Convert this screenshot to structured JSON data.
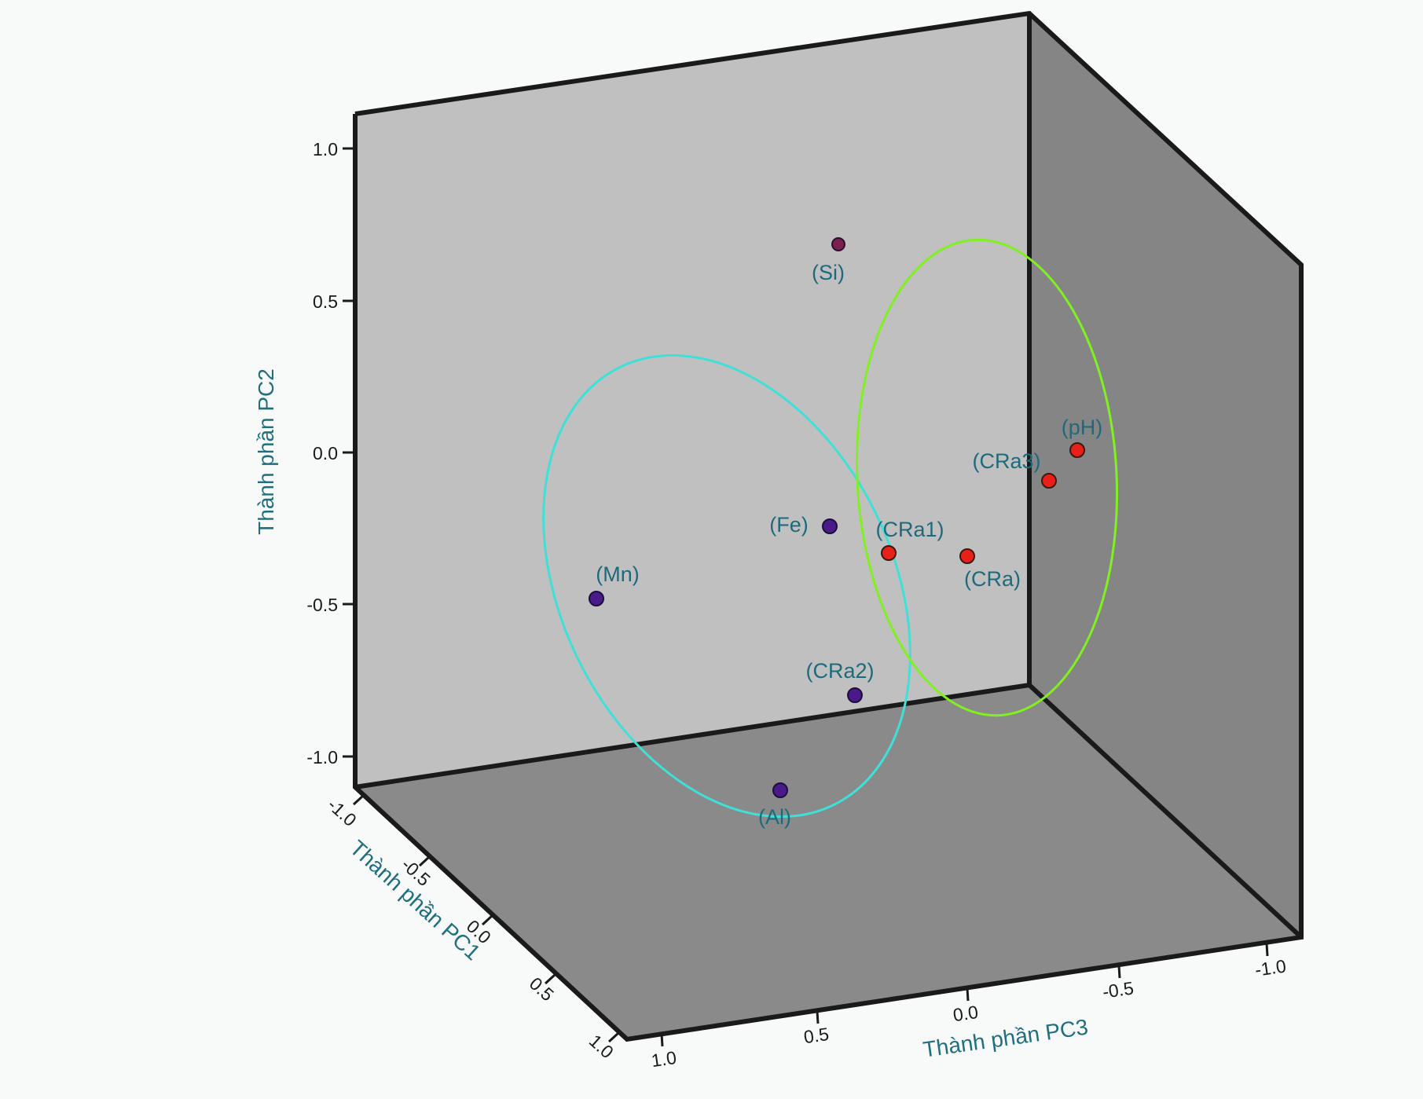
{
  "chart_data": {
    "type": "scatter",
    "title": "",
    "axes": {
      "x": {
        "label": "Thành phần PC3",
        "ticks": [
          "1.0",
          "0.5",
          "0.0",
          "-0.5",
          "-1.0"
        ],
        "range": [
          1.0,
          -1.0
        ]
      },
      "y": {
        "label": "Thành phần PC2",
        "ticks": [
          "1.0",
          "0.5",
          "0.0",
          "-0.5",
          "-1.0"
        ],
        "range": [
          -1.1,
          1.1
        ]
      },
      "z": {
        "label": "Thành phần PC1",
        "ticks": [
          "-1.0",
          "-0.5",
          "0.0",
          "0.5",
          "1.0"
        ],
        "range": [
          -1.0,
          1.0
        ]
      }
    },
    "points": [
      {
        "label": "(Si)",
        "pc2": 0.68,
        "color": "#7a1f4e"
      },
      {
        "label": "(Fe)",
        "pc2": -0.25,
        "color": "#4b1a8a"
      },
      {
        "label": "(Mn)",
        "pc2": -0.48,
        "color": "#4b1a8a"
      },
      {
        "label": "(CRa2)",
        "pc2": -0.8,
        "color": "#4b1a8a"
      },
      {
        "label": "(Al)",
        "pc2": -1.11,
        "color": "#4b1a8a"
      },
      {
        "label": "(CRa1)",
        "pc2": -0.33,
        "color": "#e8201a"
      },
      {
        "label": "(CRa)",
        "pc2": -0.34,
        "color": "#e8201a"
      },
      {
        "label": "(CRa3)",
        "pc2": -0.09,
        "color": "#e8201a"
      },
      {
        "label": "(pH)",
        "pc2": 0.01,
        "color": "#e8201a"
      }
    ],
    "groups": [
      {
        "color": "#3ee0d8",
        "members": [
          "(Mn)",
          "(Fe)",
          "(CRa2)",
          "(Al)"
        ]
      },
      {
        "color": "#80f020",
        "members": [
          "(CRa1)",
          "(CRa)",
          "(CRa3)",
          "(pH)"
        ]
      }
    ],
    "grid": false,
    "legend": "none"
  }
}
